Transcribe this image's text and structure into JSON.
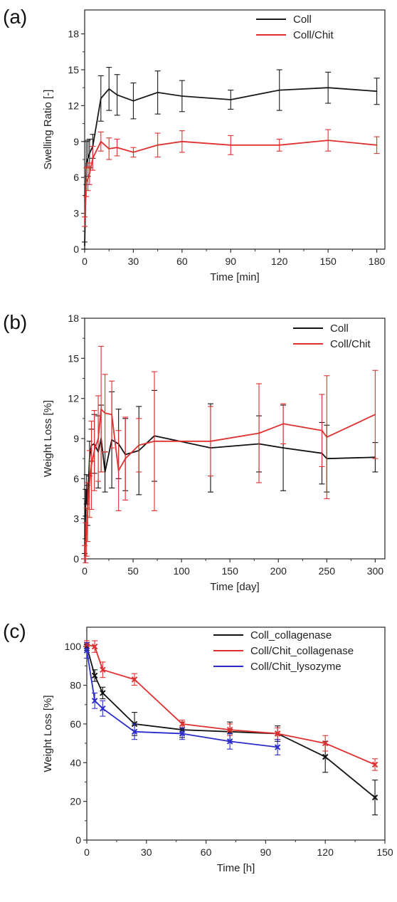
{
  "chart_data": [
    {
      "panel": "(a)",
      "type": "line",
      "xlabel": "Time [min]",
      "ylabel": "Swelling Ratio [-]",
      "xlim": [
        0,
        185
      ],
      "ylim": [
        0,
        20
      ],
      "xticks": [
        0,
        30,
        60,
        90,
        120,
        150,
        180
      ],
      "yticks": [
        0,
        3,
        6,
        9,
        12,
        15,
        18
      ],
      "grid": false,
      "legend": "top-right",
      "series": [
        {
          "name": "Coll",
          "color": "#1a1a1a",
          "x": [
            0,
            1,
            2,
            3,
            5,
            10,
            15,
            20,
            30,
            45,
            60,
            90,
            120,
            150,
            180
          ],
          "y": [
            0.3,
            7.2,
            7.6,
            8.0,
            8.6,
            12.6,
            13.4,
            12.9,
            12.4,
            13.1,
            12.8,
            12.5,
            13.3,
            13.5,
            13.2
          ],
          "err": [
            0.3,
            1.8,
            1.5,
            1.2,
            1.0,
            1.9,
            1.8,
            1.7,
            1.5,
            1.8,
            1.3,
            0.8,
            1.7,
            1.3,
            1.1
          ]
        },
        {
          "name": "Coll/Chit",
          "color": "#e03030",
          "x": [
            0,
            1,
            2,
            3,
            5,
            10,
            15,
            20,
            30,
            45,
            60,
            90,
            120,
            150,
            180
          ],
          "y": [
            2.3,
            5.6,
            5.9,
            6.3,
            7.6,
            9.0,
            8.4,
            8.5,
            8.1,
            8.7,
            9.0,
            8.7,
            8.7,
            9.1,
            8.7
          ],
          "err": [
            0.4,
            1.2,
            1.0,
            0.9,
            1.0,
            0.8,
            0.9,
            0.7,
            0.4,
            1.0,
            0.9,
            0.8,
            0.5,
            0.9,
            0.7
          ]
        }
      ]
    },
    {
      "panel": "(b)",
      "type": "line",
      "xlabel": "Time [day]",
      "ylabel": "Weight Loss [%]",
      "xlim": [
        0,
        310
      ],
      "ylim": [
        0,
        18
      ],
      "xticks": [
        0,
        50,
        100,
        150,
        200,
        250,
        300
      ],
      "yticks": [
        0,
        3,
        6,
        9,
        12,
        15,
        18
      ],
      "grid": false,
      "legend": "top-right",
      "series": [
        {
          "name": "Coll",
          "color": "#111111",
          "x": [
            0,
            1,
            2,
            3,
            5,
            7,
            10,
            14,
            17,
            21,
            28,
            35,
            42,
            56,
            72,
            130,
            180,
            205,
            245,
            250,
            300
          ],
          "y": [
            0.2,
            4.2,
            5.2,
            4.0,
            7.5,
            8.5,
            8.6,
            8.0,
            9.0,
            6.5,
            8.9,
            8.6,
            7.8,
            8.1,
            9.2,
            8.3,
            8.6,
            8.3,
            7.9,
            7.5,
            7.6
          ],
          "err": [
            0.2,
            1.0,
            1.1,
            1.5,
            1.3,
            1.2,
            2.2,
            2.7,
            2.5,
            1.5,
            3.6,
            2.6,
            2.7,
            3.3,
            3.4,
            3.3,
            2.1,
            3.2,
            2.3,
            2.5,
            1.1
          ]
        },
        {
          "name": "Coll/Chit",
          "color": "#e03030",
          "x": [
            0,
            1,
            2,
            3,
            5,
            7,
            10,
            14,
            17,
            21,
            28,
            35,
            42,
            56,
            72,
            130,
            180,
            205,
            245,
            250,
            300
          ],
          "y": [
            0.5,
            1.2,
            2.0,
            3.5,
            5.6,
            7.0,
            8.1,
            9.0,
            11.2,
            10.9,
            10.8,
            6.6,
            7.5,
            8.5,
            8.8,
            8.8,
            9.4,
            10.1,
            9.6,
            9.1,
            10.8
          ],
          "err": [
            0.5,
            1.5,
            1.8,
            2.2,
            2.5,
            3.3,
            3.0,
            3.2,
            4.7,
            2.9,
            2.5,
            3.0,
            3.1,
            2.0,
            5.2,
            2.6,
            3.7,
            1.5,
            2.7,
            4.6,
            3.3
          ]
        }
      ]
    },
    {
      "panel": "(c)",
      "type": "line",
      "xlabel": "Time [h]",
      "ylabel": "Weight Loss [%]",
      "xlim": [
        0,
        150
      ],
      "ylim": [
        0,
        110
      ],
      "xticks": [
        0,
        30,
        60,
        90,
        120,
        150
      ],
      "yticks": [
        0,
        20,
        40,
        60,
        80,
        100
      ],
      "grid": false,
      "legend": "top-right",
      "series": [
        {
          "name": "Coll_collagenase",
          "color": "#111111",
          "x": [
            0,
            4,
            8,
            24,
            48,
            72,
            96,
            120,
            145
          ],
          "y": [
            100,
            85,
            76,
            60,
            57,
            56,
            55,
            43,
            22
          ],
          "err": [
            2,
            3,
            3,
            6,
            4,
            5,
            4,
            8,
            9
          ]
        },
        {
          "name": "Coll/Chit_collagenase",
          "color": "#e03030",
          "x": [
            0,
            4,
            8,
            24,
            48,
            72,
            96,
            120,
            145
          ],
          "y": [
            101,
            100,
            88,
            83,
            60,
            57,
            55,
            50,
            39
          ],
          "err": [
            2,
            3,
            4,
            3,
            2,
            3,
            3,
            4,
            3
          ]
        },
        {
          "name": "Coll/Chit_lysozyme",
          "color": "#2c2ccc",
          "x": [
            0,
            4,
            8,
            24,
            48,
            72,
            96
          ],
          "y": [
            98,
            72,
            68,
            56,
            55,
            51,
            48
          ],
          "err": [
            4,
            4,
            4,
            4,
            3,
            4,
            4
          ]
        }
      ]
    }
  ]
}
